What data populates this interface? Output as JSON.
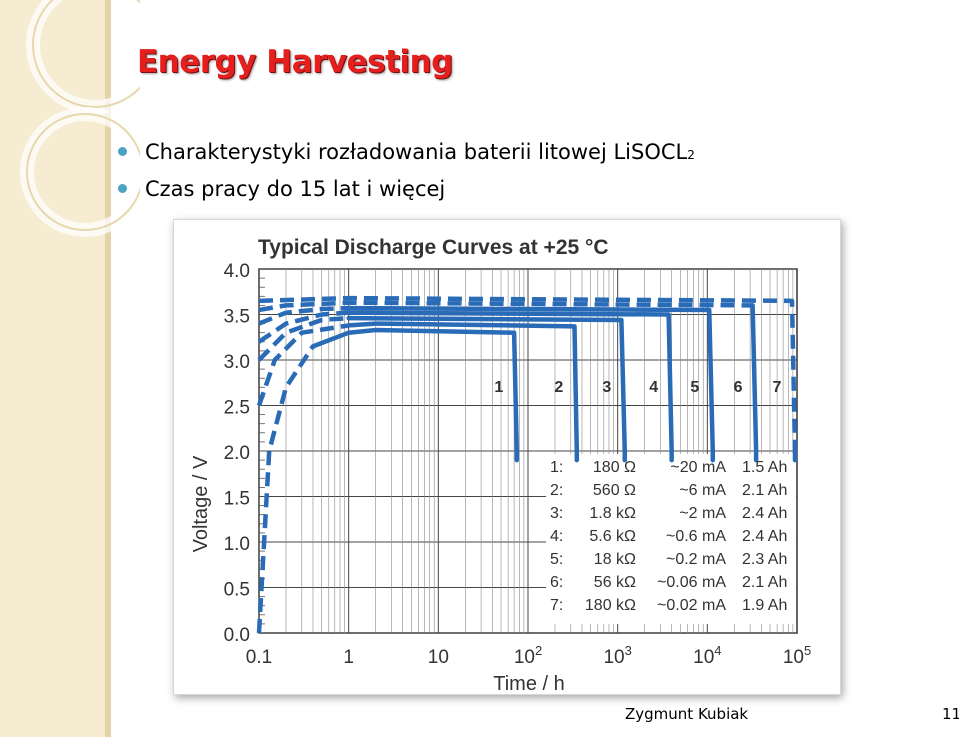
{
  "slide": {
    "title": "Energy Harvesting",
    "bullets": [
      {
        "text": "Charakterystyki rozładowania baterii litowej LiSOCL",
        "subscript": "2"
      },
      {
        "text": "Czas pracy do 15 lat i więcej",
        "subscript": ""
      }
    ],
    "author": "Zygmunt Kubiak",
    "page": "11"
  },
  "theme": {
    "title_color": "#e51e1e",
    "curve_color": "#2a6bb7",
    "bullet_color": "#4aa3c0",
    "band_color": "#f6ecd2"
  },
  "chart_data": {
    "type": "line",
    "title": "Typical Discharge Curves at +25 °C",
    "xlabel": "Time / h",
    "ylabel": "Voltage / V",
    "xscale": "log",
    "xlim": [
      0.1,
      100000
    ],
    "ylim": [
      0,
      4.0
    ],
    "x_ticks": [
      {
        "value": 0.1,
        "base": "0.1",
        "exp": ""
      },
      {
        "value": 1,
        "base": "1",
        "exp": ""
      },
      {
        "value": 10,
        "base": "10",
        "exp": ""
      },
      {
        "value": 100,
        "base": "10",
        "exp": "2"
      },
      {
        "value": 1000,
        "base": "10",
        "exp": "3"
      },
      {
        "value": 10000,
        "base": "10",
        "exp": "4"
      },
      {
        "value": 100000,
        "base": "10",
        "exp": "5"
      }
    ],
    "y_ticks": [
      "0.0",
      "0.5",
      "1.0",
      "1.5",
      "2.0",
      "2.5",
      "3.0",
      "3.5",
      "4.0"
    ],
    "grid": true,
    "series": [
      {
        "name": "1",
        "resistance": "180 Ω",
        "current": "~20 mA",
        "capacity": "1.5 Ah",
        "plateau": 3.33,
        "end_hours": 75,
        "points": [
          [
            0.1,
            0
          ],
          [
            0.13,
            2.0
          ],
          [
            0.2,
            2.7
          ],
          [
            0.4,
            3.15
          ],
          [
            1,
            3.3
          ],
          [
            2,
            3.33
          ],
          [
            70,
            3.3
          ],
          [
            75,
            2.0
          ],
          [
            75,
            1.9
          ]
        ]
      },
      {
        "name": "2",
        "resistance": "560 Ω",
        "current": "~6 mA",
        "capacity": "2.1 Ah",
        "plateau": 3.4,
        "end_hours": 350,
        "points": [
          [
            0.1,
            2.5
          ],
          [
            0.15,
            3.0
          ],
          [
            0.3,
            3.3
          ],
          [
            1,
            3.38
          ],
          [
            2,
            3.4
          ],
          [
            330,
            3.37
          ],
          [
            350,
            2.0
          ],
          [
            350,
            1.9
          ]
        ]
      },
      {
        "name": "3",
        "resistance": "1.8 kΩ",
        "current": "~2 mA",
        "capacity": "2.4 Ah",
        "plateau": 3.46,
        "end_hours": 1200,
        "points": [
          [
            0.1,
            3.0
          ],
          [
            0.2,
            3.3
          ],
          [
            0.5,
            3.44
          ],
          [
            1,
            3.46
          ],
          [
            1100,
            3.44
          ],
          [
            1200,
            2.0
          ],
          [
            1200,
            1.9
          ]
        ]
      },
      {
        "name": "4",
        "resistance": "5.6 kΩ",
        "current": "~0.6 mA",
        "capacity": "2.4 Ah",
        "plateau": 3.52,
        "end_hours": 4000,
        "points": [
          [
            0.1,
            3.2
          ],
          [
            0.2,
            3.4
          ],
          [
            0.5,
            3.5
          ],
          [
            1,
            3.52
          ],
          [
            3700,
            3.5
          ],
          [
            4000,
            2.0
          ],
          [
            4000,
            1.9
          ]
        ]
      },
      {
        "name": "5",
        "resistance": "18 kΩ",
        "current": "~0.2 mA",
        "capacity": "2.3 Ah",
        "plateau": 3.57,
        "end_hours": 11500,
        "points": [
          [
            0.1,
            3.4
          ],
          [
            0.2,
            3.52
          ],
          [
            0.5,
            3.56
          ],
          [
            1,
            3.57
          ],
          [
            10500,
            3.55
          ],
          [
            11500,
            2.0
          ],
          [
            11500,
            1.9
          ]
        ]
      },
      {
        "name": "6",
        "resistance": "56 kΩ",
        "current": "~0.06 mA",
        "capacity": "2.1 Ah",
        "plateau": 3.63,
        "end_hours": 35000,
        "points": [
          [
            0.1,
            3.55
          ],
          [
            0.2,
            3.6
          ],
          [
            1,
            3.63
          ],
          [
            32000,
            3.6
          ],
          [
            35000,
            2.0
          ],
          [
            35000,
            1.9
          ]
        ]
      },
      {
        "name": "7",
        "resistance": "180 kΩ",
        "current": "~0.02 mA",
        "capacity": "1.9 Ah",
        "plateau": 3.68,
        "end_hours": 95000,
        "points": [
          [
            0.1,
            3.65
          ],
          [
            1,
            3.68
          ],
          [
            88000,
            3.65
          ],
          [
            95000,
            2.0
          ],
          [
            95000,
            1.9
          ]
        ]
      }
    ],
    "legend_position": "bottom-right"
  }
}
